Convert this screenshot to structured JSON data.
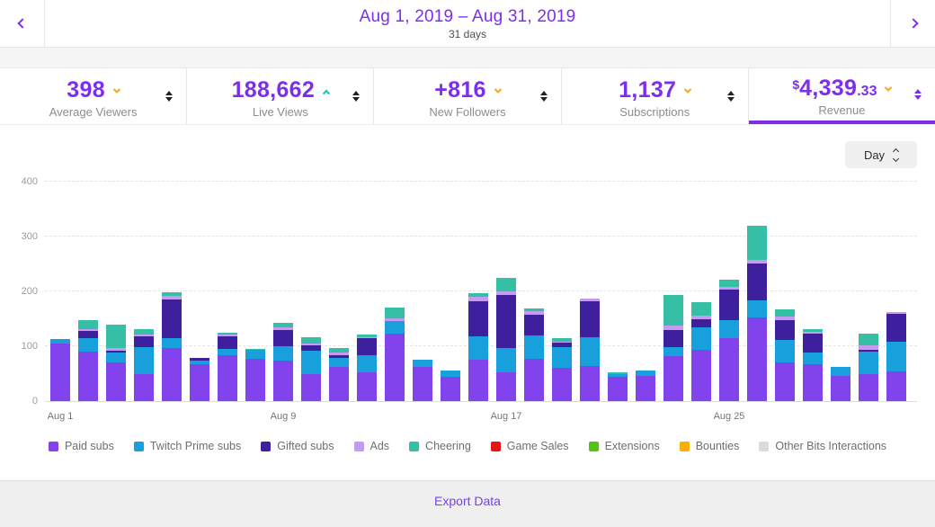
{
  "header": {
    "date_range": "Aug 1, 2019 – Aug 31, 2019",
    "subtitle": "31 days"
  },
  "stats": [
    {
      "value": "398",
      "label": "Average Viewers",
      "trend": "down",
      "selected": false
    },
    {
      "value": "188,662",
      "label": "Live Views",
      "trend": "up",
      "selected": false
    },
    {
      "value": "+816",
      "label": "New Followers",
      "trend": "down",
      "selected": false
    },
    {
      "value": "1,137",
      "label": "Subscriptions",
      "trend": "down",
      "selected": false
    },
    {
      "prefix": "$",
      "value": "4,339",
      "decimal": ".33",
      "label": "Revenue",
      "trend": "down",
      "selected": true
    }
  ],
  "controls": {
    "interval_label": "Day"
  },
  "chart_data": {
    "type": "bar",
    "stacked": true,
    "x": [
      "Aug 1",
      "Aug 2",
      "Aug 3",
      "Aug 4",
      "Aug 5",
      "Aug 6",
      "Aug 7",
      "Aug 8",
      "Aug 9",
      "Aug 10",
      "Aug 11",
      "Aug 12",
      "Aug 13",
      "Aug 14",
      "Aug 15",
      "Aug 16",
      "Aug 17",
      "Aug 18",
      "Aug 19",
      "Aug 20",
      "Aug 21",
      "Aug 22",
      "Aug 23",
      "Aug 24",
      "Aug 25",
      "Aug 26",
      "Aug 27",
      "Aug 28",
      "Aug 29",
      "Aug 30",
      "Aug 31"
    ],
    "x_tick_labels": [
      "Aug 1",
      "Aug 9",
      "Aug 17",
      "Aug 25"
    ],
    "x_tick_indices": [
      0,
      8,
      16,
      24
    ],
    "ylim": [
      0,
      400
    ],
    "yticks": [
      0,
      100,
      200,
      300,
      400
    ],
    "grid": "dashed-horizontal",
    "legend_position": "bottom",
    "series": [
      {
        "name": "Paid subs",
        "color": "#8343ec",
        "values": [
          105,
          90,
          70,
          49,
          96,
          67,
          83,
          77,
          74,
          50,
          63,
          52,
          123,
          63,
          45,
          75,
          53,
          77,
          61,
          64,
          45,
          46,
          82,
          93,
          115,
          152,
          70,
          68,
          46,
          49,
          54
        ]
      },
      {
        "name": "Twitch Prime subs",
        "color": "#18a0dc",
        "values": [
          8,
          25,
          18,
          50,
          19,
          7,
          12,
          16,
          26,
          42,
          15,
          31,
          23,
          13,
          11,
          43,
          44,
          43,
          37,
          53,
          4,
          9,
          17,
          42,
          33,
          32,
          42,
          21,
          16,
          41,
          55
        ]
      },
      {
        "name": "Gifted subs",
        "color": "#3e1f9e",
        "values": [
          0,
          13,
          4,
          19,
          71,
          5,
          23,
          0,
          30,
          9,
          6,
          31,
          0,
          0,
          0,
          64,
          97,
          38,
          8,
          65,
          0,
          0,
          30,
          14,
          56,
          67,
          35,
          34,
          0,
          4,
          50
        ]
      },
      {
        "name": "Ads",
        "color": "#c49af2",
        "values": [
          0,
          3,
          4,
          4,
          6,
          0,
          3,
          0,
          5,
          4,
          5,
          2,
          5,
          0,
          0,
          8,
          6,
          6,
          2,
          5,
          0,
          0,
          9,
          7,
          4,
          7,
          7,
          3,
          0,
          7,
          3
        ]
      },
      {
        "name": "Cheering",
        "color": "#35bfa5",
        "values": [
          0,
          16,
          43,
          10,
          6,
          0,
          4,
          2,
          7,
          12,
          7,
          6,
          19,
          0,
          0,
          7,
          25,
          5,
          7,
          0,
          3,
          0,
          56,
          24,
          14,
          62,
          13,
          5,
          0,
          22,
          0
        ]
      },
      {
        "name": "Game Sales",
        "color": "#e61616",
        "values": []
      },
      {
        "name": "Extensions",
        "color": "#53c413",
        "values": []
      },
      {
        "name": "Bounties",
        "color": "#f8ae0b",
        "values": []
      },
      {
        "name": "Other Bits Interactions",
        "color": "#dbdbdb",
        "values": []
      }
    ]
  },
  "footer": {
    "export_label": "Export Data"
  },
  "colors": {
    "accent": "#7d2df0",
    "trend_up": "#14c7b4",
    "trend_down": "#f7a823",
    "footer_bg": "#efefef"
  }
}
